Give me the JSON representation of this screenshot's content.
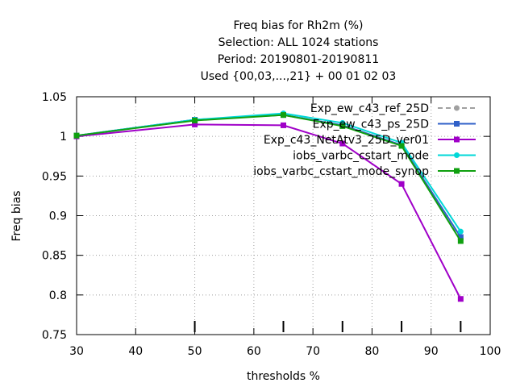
{
  "chart_data": {
    "type": "line",
    "title_lines": [
      "Freq bias  for Rh2m (%)",
      "Selection: ALL   1024 stations",
      "Period: 20190801-20190811",
      "Used {00,03,...,21} + 00 01 02 03"
    ],
    "xlabel": "thresholds %",
    "ylabel": "Freq bias",
    "xlim": [
      30,
      100
    ],
    "ylim": [
      0.75,
      1.05
    ],
    "xticks": [
      30,
      40,
      50,
      60,
      70,
      80,
      90,
      100
    ],
    "yticks": [
      0.75,
      0.8,
      0.85,
      0.9,
      0.95,
      1,
      1.05
    ],
    "ytick_labels": [
      "0.75",
      "0.8",
      "0.85",
      "0.9",
      "0.95",
      "1",
      "1.05"
    ],
    "grid": true,
    "legend_position": "top-right",
    "x": [
      30,
      50,
      65,
      75,
      85,
      95
    ],
    "series": [
      {
        "name": "Exp_ew_c43_ref_25D",
        "color": "#a0a0a0",
        "dashed": true,
        "marker": "circle",
        "values": [
          1.001,
          1.021,
          1.027,
          1.014,
          0.989,
          0.871
        ]
      },
      {
        "name": "Exp_ew_c43_ps_25D",
        "color": "#3060c8",
        "dashed": false,
        "marker": "square",
        "values": [
          1.001,
          1.021,
          1.027,
          1.014,
          0.989,
          0.873
        ]
      },
      {
        "name": "Exp_c43_NetAtv3_25D_ver01",
        "color": "#a000c8",
        "dashed": false,
        "marker": "square",
        "values": [
          1.0,
          1.015,
          1.014,
          0.991,
          0.94,
          0.795
        ]
      },
      {
        "name": "iobs_varbc_cstart_mode",
        "color": "#00d8d8",
        "dashed": false,
        "marker": "circle",
        "values": [
          1.001,
          1.021,
          1.029,
          1.017,
          0.992,
          0.88
        ]
      },
      {
        "name": "iobs_varbc_cstart_mode_synop",
        "color": "#10a010",
        "dashed": false,
        "marker": "square",
        "values": [
          1.001,
          1.02,
          1.027,
          1.013,
          0.988,
          0.868
        ]
      }
    ]
  }
}
